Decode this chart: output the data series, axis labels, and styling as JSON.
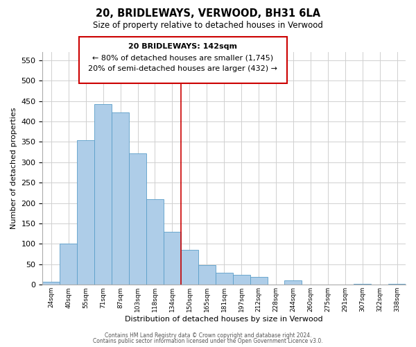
{
  "title": "20, BRIDLEWAYS, VERWOOD, BH31 6LA",
  "subtitle": "Size of property relative to detached houses in Verwood",
  "xlabel": "Distribution of detached houses by size in Verwood",
  "ylabel": "Number of detached properties",
  "bar_labels": [
    "24sqm",
    "40sqm",
    "55sqm",
    "71sqm",
    "87sqm",
    "103sqm",
    "118sqm",
    "134sqm",
    "150sqm",
    "165sqm",
    "181sqm",
    "197sqm",
    "212sqm",
    "228sqm",
    "244sqm",
    "260sqm",
    "275sqm",
    "291sqm",
    "307sqm",
    "322sqm",
    "338sqm"
  ],
  "bar_heights": [
    7,
    101,
    354,
    443,
    422,
    322,
    209,
    130,
    85,
    48,
    29,
    25,
    20,
    0,
    10,
    0,
    0,
    0,
    2,
    0,
    2
  ],
  "bar_color": "#aecde8",
  "bar_edge_color": "#5a9ec9",
  "ylim": [
    0,
    570
  ],
  "yticks": [
    0,
    50,
    100,
    150,
    200,
    250,
    300,
    350,
    400,
    450,
    500,
    550
  ],
  "vline_color": "#cc0000",
  "vline_x": 8.0,
  "annotation_line1": "20 BRIDLEWAYS: 142sqm",
  "annotation_line2": "← 80% of detached houses are smaller (1,745)",
  "annotation_line3": "20% of semi-detached houses are larger (432) →",
  "footer_line1": "Contains HM Land Registry data © Crown copyright and database right 2024.",
  "footer_line2": "Contains public sector information licensed under the Open Government Licence v3.0.",
  "background_color": "#ffffff",
  "grid_color": "#d0d0d0"
}
